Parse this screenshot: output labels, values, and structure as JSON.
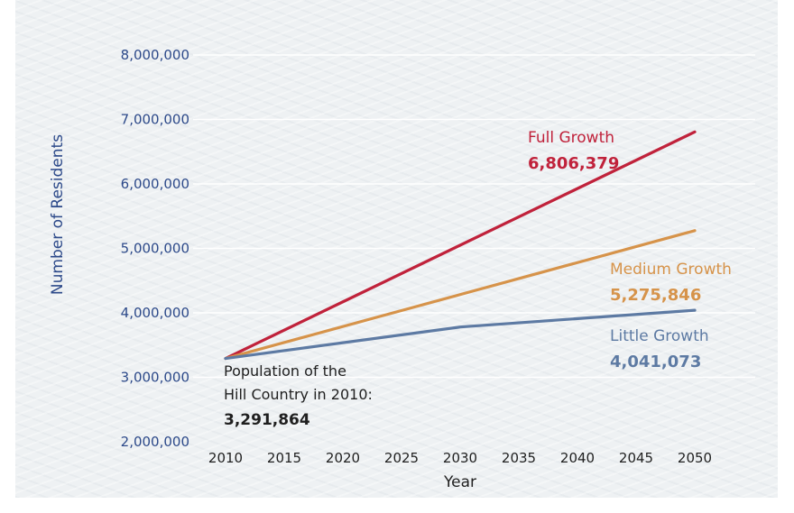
{
  "chart_data": {
    "type": "line",
    "xlabel": "Year",
    "ylabel": "Number of Residents",
    "x": [
      2010,
      2015,
      2020,
      2025,
      2030,
      2035,
      2040,
      2045,
      2050
    ],
    "x_tick_labels": [
      "2010",
      "2015",
      "2020",
      "2025",
      "2030",
      "2035",
      "2040",
      "2045",
      "2050"
    ],
    "ylim": [
      2000000,
      8000000
    ],
    "y_ticks": [
      2000000,
      3000000,
      4000000,
      5000000,
      6000000,
      7000000,
      8000000
    ],
    "y_tick_labels": [
      "2,000,000",
      "3,000,000",
      "4,000,000",
      "5,000,000",
      "6,000,000",
      "7,000,000",
      "8,000,000"
    ],
    "grid": "horizontal",
    "series": [
      {
        "name": "Full Growth",
        "value_label": "6,806,379",
        "color": "#c0223b",
        "points": [
          [
            2010,
            3291864
          ],
          [
            2050,
            6806379
          ]
        ]
      },
      {
        "name": "Medium Growth",
        "value_label": "5,275,846",
        "color": "#d6934a",
        "points": [
          [
            2010,
            3291864
          ],
          [
            2050,
            5275846
          ]
        ]
      },
      {
        "name": "Little Growth",
        "value_label": "4,041,073",
        "color": "#5d7aa3",
        "points": [
          [
            2010,
            3291864
          ],
          [
            2030,
            3780000
          ],
          [
            2050,
            4041073
          ]
        ]
      }
    ],
    "annotation": {
      "lines": [
        "Population of the",
        "Hill Country in 2010:"
      ],
      "value": "3,291,864"
    }
  },
  "colors": {
    "ytick": "#2d4a8a",
    "ylabel": "#2d4a8a",
    "text": "#1f1f1f",
    "grid": "#ffffff"
  }
}
